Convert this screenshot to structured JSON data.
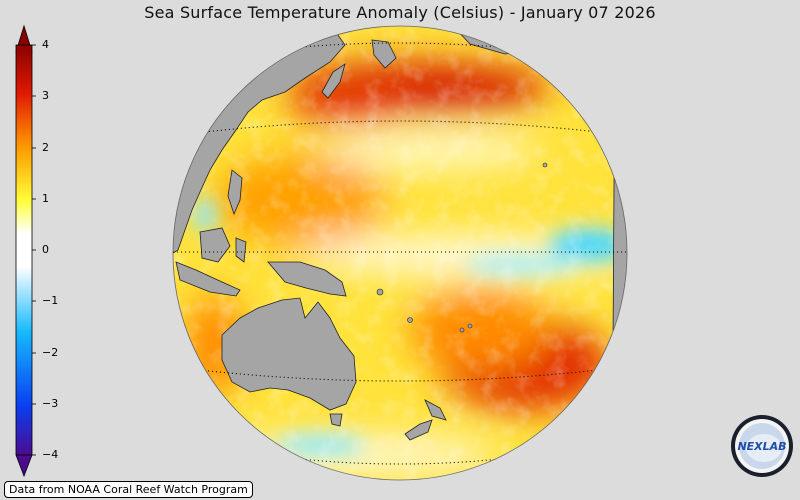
{
  "title": "Sea Surface Temperature Anomaly (Celsius) - January 07 2026",
  "colorbar": {
    "ticks": [
      "4",
      "3",
      "2",
      "1",
      "0",
      "−1",
      "−2",
      "−3",
      "−4"
    ],
    "min": -4,
    "max": 4,
    "colors": [
      "#4b0b8f",
      "#0a3ff0",
      "#17b9ff",
      "#ffffff",
      "#ffff3a",
      "#ff9a00",
      "#e01b00",
      "#8b0000"
    ]
  },
  "credit": "Data from NOAA Coral Reef Watch Program",
  "logo": {
    "text": "NEXLAB"
  },
  "colors": {
    "background": "#dcdcdc",
    "land": "#a5a5a5"
  }
}
